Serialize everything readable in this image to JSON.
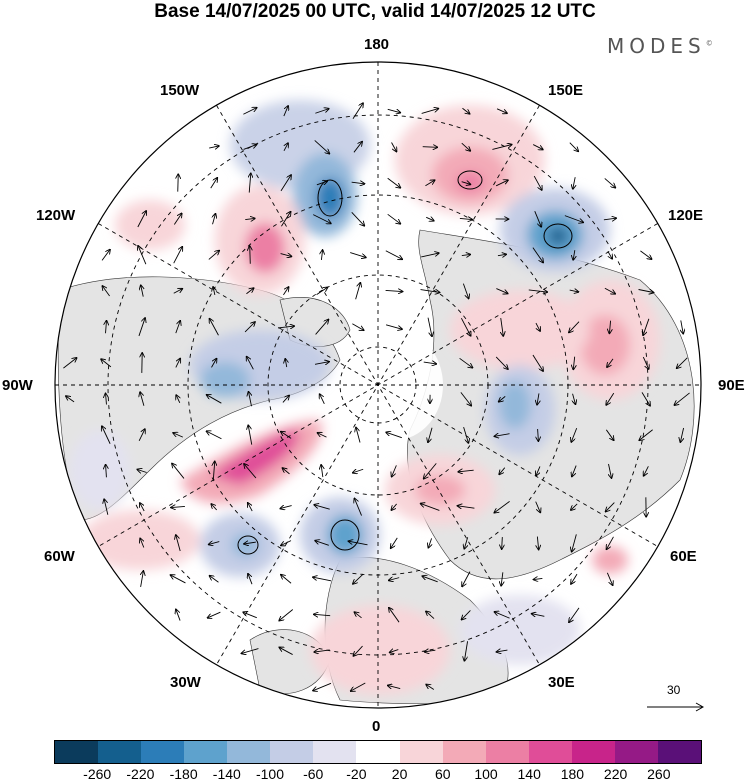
{
  "title": "Base 14/07/2025 00 UTC, valid 14/07/2025 12 UTC",
  "brand": "MODES",
  "brand_mark": "©",
  "longitude_labels": {
    "top": "180",
    "bottom": "0",
    "left": "90W",
    "right": "90E",
    "upper_left_1": "150W",
    "upper_left_2": "120W",
    "upper_right_1": "150E",
    "upper_right_2": "120E",
    "lower_left_1": "60W",
    "lower_left_2": "30W",
    "lower_right_1": "60E",
    "lower_right_2": "30E"
  },
  "reference_vector": "30",
  "colorbar": {
    "colors": [
      "#0b3b5c",
      "#145f8e",
      "#2c7db8",
      "#5ea2cd",
      "#93b8da",
      "#c4cde6",
      "#e3e2f0",
      "#ffffff",
      "#f8d5d9",
      "#f3aab7",
      "#ec7fa4",
      "#e04d98",
      "#c8248a",
      "#951a86",
      "#5a1078"
    ],
    "ticks": [
      "-260",
      "-220",
      "-180",
      "-140",
      "-100",
      "-60",
      "-20",
      "20",
      "60",
      "100",
      "140",
      "180",
      "220",
      "260"
    ]
  }
}
